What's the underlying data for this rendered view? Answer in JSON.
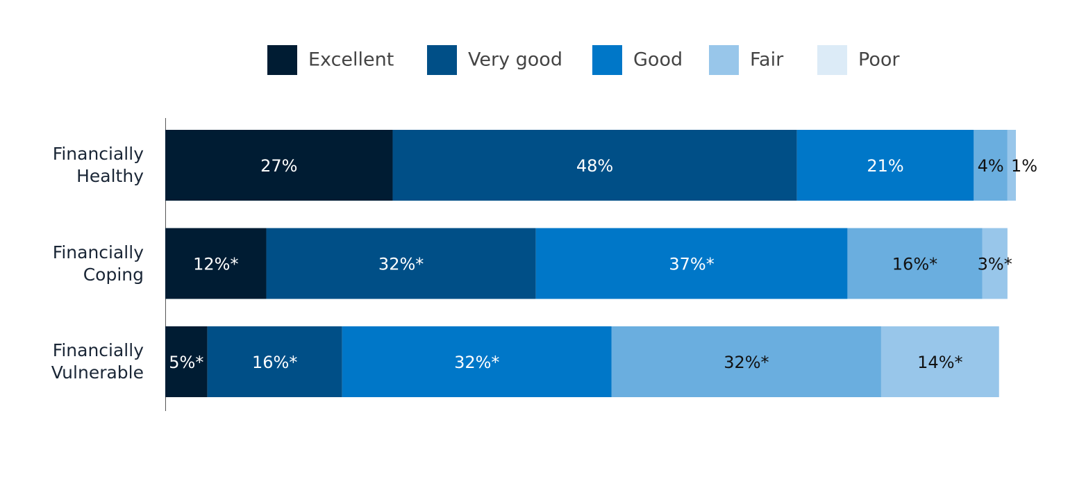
{
  "chart_data": {
    "type": "stacked-bar-horizontal",
    "categories": [
      "Financially Healthy",
      "Financially Coping",
      "Financially Vulnerable"
    ],
    "series": [
      {
        "name": "Excellent",
        "color": "#001c33",
        "legend_color": "#001c33",
        "label_color": "#ffffff",
        "values": [
          27,
          12,
          5
        ],
        "value_labels": [
          "27%",
          "12%*",
          "5%*"
        ]
      },
      {
        "name": "Very good",
        "color": "#004f87",
        "legend_color": "#004f87",
        "label_color": "#ffffff",
        "values": [
          48,
          32,
          16
        ],
        "value_labels": [
          "48%",
          "32%*",
          "16%*"
        ]
      },
      {
        "name": "Good",
        "color": "#0077c8",
        "legend_color": "#0077c8",
        "label_color": "#ffffff",
        "values": [
          21,
          37,
          32
        ],
        "value_labels": [
          "21%",
          "37%*",
          "32%*"
        ]
      },
      {
        "name": "Fair",
        "color": "#6aaedf",
        "legend_color": "#98c6ea",
        "label_color": "#111111",
        "values": [
          4,
          16,
          32
        ],
        "value_labels": [
          "4%",
          "16%*",
          "32%*"
        ]
      },
      {
        "name": "Poor",
        "color": "#98c6ea",
        "legend_color": "#dcebf7",
        "label_color": "#111111",
        "values": [
          1,
          3,
          14
        ],
        "value_labels": [
          "1%",
          "3%*",
          "14%*"
        ]
      }
    ],
    "xlim": [
      0,
      101
    ]
  }
}
